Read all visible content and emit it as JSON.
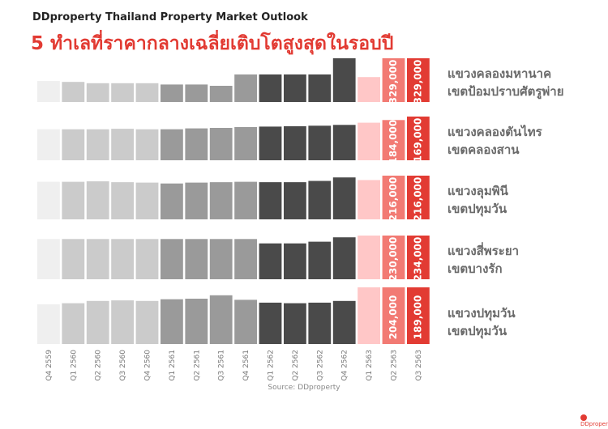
{
  "header": "DDproperty Thailand Property Market Outlook",
  "title": "5 ทำเลที่ราคากลางเฉลี่ยเติบโตสูงสุดในรอบปี",
  "source": "Source: DDproperty",
  "colors": {
    "Q4 2559": "#efefef",
    "2560": "#cbcbcb",
    "2561": "#9a9a9a",
    "2562": "#4a4a4a",
    "Q1 2563": "#ffc7c7",
    "Q2 2563": "#f27a73",
    "Q3 2563": "#e23b33"
  },
  "chart_data": {
    "type": "bar",
    "categories": [
      "Q4 2559",
      "Q1 2560",
      "Q2 2560",
      "Q3 2560",
      "Q4 2560",
      "Q1 2561",
      "Q2 2561",
      "Q3 2561",
      "Q4 2561",
      "Q1 2562",
      "Q2 2562",
      "Q3 2562",
      "Q4 2562",
      "Q1 2563",
      "Q2 2563",
      "Q3 2563"
    ],
    "panels": [
      {
        "label_line1": "แขวงคลองมหานาค",
        "label_line2": "เขตป้อมปราบศัตรูพ่าย",
        "values": [
          48,
          46,
          43,
          43,
          43,
          40,
          40,
          37,
          63,
          63,
          63,
          63,
          100,
          57,
          null,
          null
        ],
        "value_labels": {
          "Q2 2563": "329,000",
          "Q3 2563": "329,000"
        }
      },
      {
        "label_line1": "แขวงคลองตันไทร",
        "label_line2": "เขตคลองสาน",
        "values": [
          71,
          71,
          71,
          72,
          71,
          71,
          73,
          74,
          76,
          77,
          78,
          79,
          81,
          86,
          92,
          null
        ],
        "value_labels": {
          "Q2 2563": "184,000",
          "Q3 2563": "169,000"
        }
      },
      {
        "label_line1": "แขวงลุมพินี",
        "label_line2": "เขตปทุมวัน",
        "values": [
          86,
          86,
          87,
          85,
          84,
          82,
          84,
          85,
          86,
          85,
          85,
          88,
          96,
          90,
          null,
          null
        ],
        "value_labels": {
          "Q2 2563": "216,000",
          "Q3 2563": "216,000"
        }
      },
      {
        "label_line1": "แขวงสี่พระยา",
        "label_line2": "เขตบางรัก",
        "values": [
          92,
          92,
          92,
          92,
          92,
          92,
          92,
          92,
          92,
          82,
          82,
          86,
          96,
          100,
          null,
          null
        ],
        "value_labels": {
          "Q2 2563": "230,000",
          "Q3 2563": "234,000"
        }
      },
      {
        "label_line1": "แขวงปทุมวัน",
        "label_line2": "เขตปทุมวัน",
        "values": [
          70,
          72,
          76,
          77,
          76,
          79,
          80,
          86,
          78,
          73,
          72,
          73,
          76,
          100,
          null,
          null
        ],
        "value_labels": {
          "Q2 2563": "204,000",
          "Q3 2563": "189,000"
        }
      }
    ]
  }
}
